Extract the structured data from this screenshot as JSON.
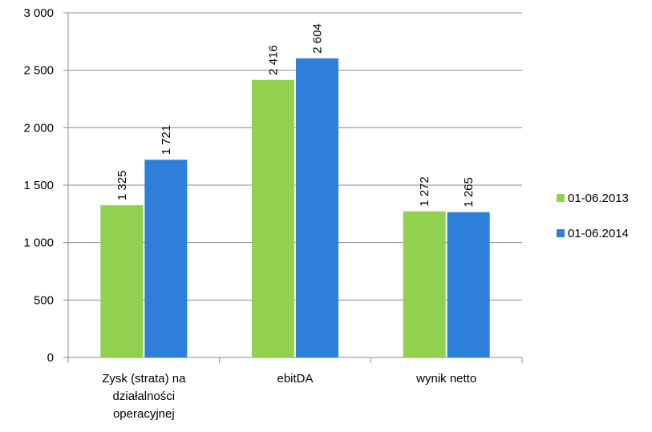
{
  "chart_data": {
    "type": "bar",
    "title": "",
    "xlabel": "",
    "ylabel": "",
    "categories": [
      [
        "Zysk (strata) na",
        "działalności",
        "operacyjnej"
      ],
      [
        "ebitDA"
      ],
      [
        "wynik netto"
      ]
    ],
    "series": [
      {
        "name": "01-06.2013",
        "color": "#92D050",
        "values": [
          1325,
          2416,
          1272
        ],
        "labels": [
          "1 325",
          "2 416",
          "1 272"
        ]
      },
      {
        "name": "01-06.2014",
        "color": "#2E7FD9",
        "values": [
          1721,
          2604,
          1265
        ],
        "labels": [
          "1 721",
          "2 604",
          "1 265"
        ]
      }
    ],
    "ylim": [
      0,
      3000
    ],
    "yticks": [
      0,
      500,
      1000,
      1500,
      2000,
      2500,
      3000
    ],
    "ytick_labels": [
      "0",
      "500",
      "1 000",
      "1 500",
      "2 000",
      "2 500",
      "3 000"
    ],
    "grid": true,
    "legend_position": "right"
  }
}
